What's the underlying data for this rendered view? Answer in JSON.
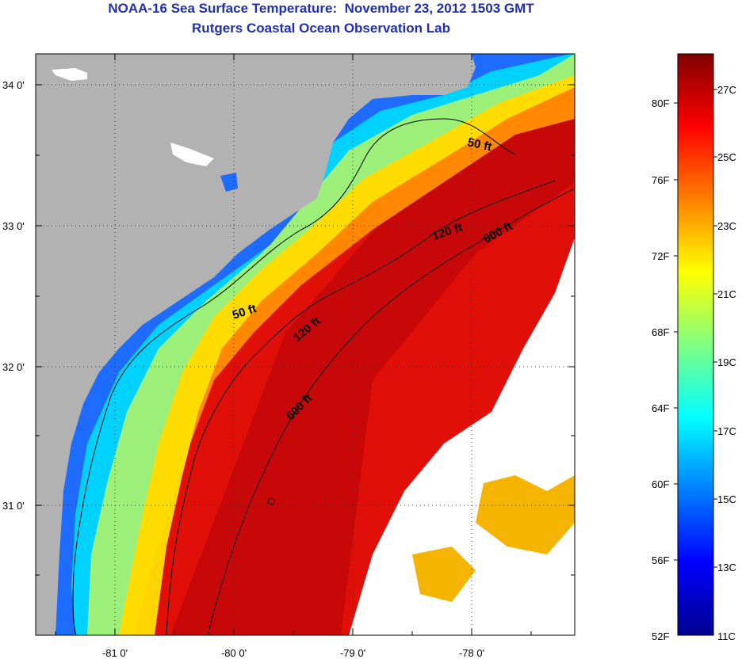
{
  "header": {
    "title": "NOAA-16 Sea Surface Temperature:  November 23, 2012 1503 GMT",
    "subtitle": "Rutgers Coastal Ocean Observation Lab"
  },
  "map": {
    "latitude_labels": [
      "34 0'",
      "33 0'",
      "32 0'",
      "31 0'"
    ],
    "longitude_labels": [
      "-81 0'",
      "-80 0'",
      "-79 0'",
      "-78 0'"
    ],
    "contour_labels": {
      "c50_north": "50 ft",
      "c50_south": "50 ft",
      "c120_north": "120 ft",
      "c120_south": "120 ft",
      "c600_north": "600 ft",
      "c600_south": "600 ft"
    },
    "colors": {
      "land": "#b2b2b2",
      "no_data": "#ffffff",
      "contour": "#000000"
    }
  },
  "colorbar": {
    "fahrenheit_labels": [
      "80F",
      "76F",
      "72F",
      "68F",
      "64F",
      "60F",
      "56F",
      "52F"
    ],
    "celsius_labels": [
      "27C",
      "25C",
      "23C",
      "21C",
      "19C",
      "17C",
      "15C",
      "13C",
      "11C"
    ],
    "range_celsius": [
      11,
      28
    ],
    "colormap": "jet"
  }
}
